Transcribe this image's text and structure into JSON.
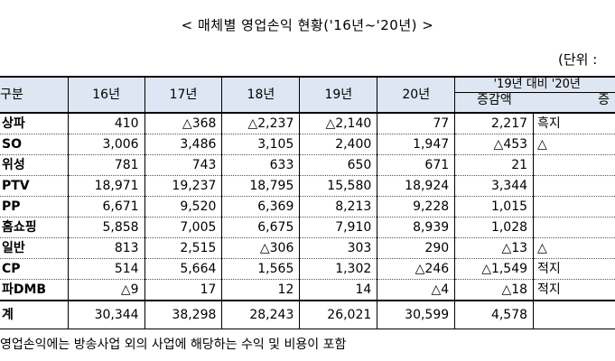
{
  "title": "< 매체별 영업손익 현황('16년~'20년) >",
  "unit_label": "(단위 :",
  "header": {
    "category": "구분",
    "years": [
      "16년",
      "17년",
      "18년",
      "19년",
      "20년"
    ],
    "comparison": "'19년 대비 '20년",
    "change_amount": "증감액",
    "change_rate": "증"
  },
  "rows": [
    {
      "label": "상파",
      "values": [
        "410",
        "△368",
        "△2,237",
        "△2,140",
        "77",
        "2,217"
      ],
      "extra": "흑지"
    },
    {
      "label": "SO",
      "values": [
        "3,006",
        "3,486",
        "3,105",
        "2,400",
        "1,947",
        "△453"
      ],
      "extra": "△"
    },
    {
      "label": "위성",
      "values": [
        "781",
        "743",
        "633",
        "650",
        "671",
        "21"
      ],
      "extra": ""
    },
    {
      "label": "PTV",
      "values": [
        "18,971",
        "19,237",
        "18,795",
        "15,580",
        "18,924",
        "3,344"
      ],
      "extra": ""
    },
    {
      "label": "PP",
      "values": [
        "6,671",
        "9,520",
        "6,369",
        "8,213",
        "9,228",
        "1,015"
      ],
      "extra": ""
    },
    {
      "label": "홈쇼핑",
      "values": [
        "5,858",
        "7,005",
        "6,675",
        "7,910",
        "8,939",
        "1,028"
      ],
      "extra": ""
    },
    {
      "label": "일반",
      "values": [
        "813",
        "2,515",
        "△306",
        "303",
        "290",
        "△13"
      ],
      "extra": "△"
    },
    {
      "label": "CP",
      "values": [
        "514",
        "5,664",
        "1,565",
        "1,302",
        "△246",
        "△1,549"
      ],
      "extra": "적지"
    },
    {
      "label": "파DMB",
      "values": [
        "△9",
        "17",
        "12",
        "14",
        "△4",
        "△18"
      ],
      "extra": "적지"
    }
  ],
  "total": {
    "label": "계",
    "values": [
      "30,344",
      "38,298",
      "28,243",
      "26,021",
      "30,599",
      "4,578"
    ],
    "extra": ""
  },
  "footnote": "영업손익에는 방송사업 외의 사업에 해당하는 수익 및 비용이 포함"
}
